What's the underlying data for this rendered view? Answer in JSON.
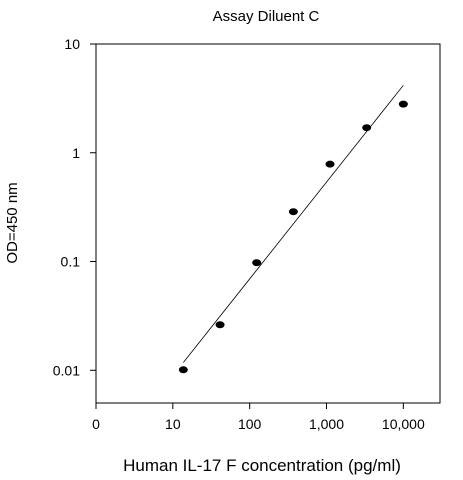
{
  "chart_data": {
    "type": "scatter",
    "title": "Assay Diluent C",
    "xlabel": "Human IL-17 F concentration (pg/ml)",
    "ylabel": "OD=450 nm",
    "x_scale": "log",
    "y_scale": "log",
    "xlim": [
      1,
      30000
    ],
    "ylim": [
      0.005,
      10
    ],
    "x_ticks": [
      {
        "value": 1,
        "label": "0"
      },
      {
        "value": 10,
        "label": "10"
      },
      {
        "value": 100,
        "label": "100"
      },
      {
        "value": 1000,
        "label": "1,000"
      },
      {
        "value": 10000,
        "label": "10,000"
      }
    ],
    "y_ticks": [
      {
        "value": 0.01,
        "label": "0.01"
      },
      {
        "value": 0.1,
        "label": "0.1"
      },
      {
        "value": 1,
        "label": "1"
      },
      {
        "value": 10,
        "label": "10"
      }
    ],
    "grid": false,
    "legend": "none",
    "series": [
      {
        "points": [
          {
            "x": 13.7,
            "y": 0.0101
          },
          {
            "x": 41.2,
            "y": 0.0262
          },
          {
            "x": 123.5,
            "y": 0.0975
          },
          {
            "x": 370.4,
            "y": 0.287
          },
          {
            "x": 1111,
            "y": 0.785
          },
          {
            "x": 3333,
            "y": 1.7
          },
          {
            "x": 10000,
            "y": 2.8
          }
        ]
      }
    ],
    "fit_line": [
      {
        "x": 13.7,
        "y": 0.0118
      },
      {
        "x": 10000,
        "y": 4.17
      }
    ],
    "colors": {
      "marker": "#000000",
      "line": "#000000",
      "axis": "#000000"
    }
  }
}
